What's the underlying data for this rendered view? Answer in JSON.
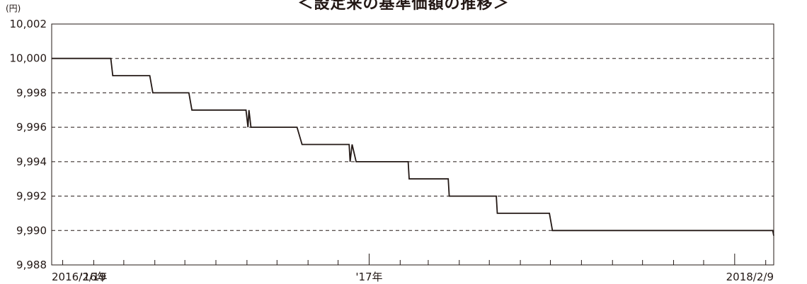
{
  "chart_data": {
    "type": "line",
    "title": "＜設定来の基準価額の推移＞",
    "unit_label": "(円)",
    "ylim": [
      9988,
      10002
    ],
    "yticks": [
      9988,
      9990,
      9992,
      9994,
      9996,
      9998,
      10000,
      10002
    ],
    "ytick_labels": [
      "9,988",
      "9,990",
      "9,992",
      "9,994",
      "9,996",
      "9,998",
      "10,000",
      "10,002"
    ],
    "grid": "horizontal-dashed",
    "xlim": [
      "2016-02-19",
      "2018-02-09"
    ],
    "x_tick_labels": [
      {
        "x": "2016-02-19",
        "label": "2016/2/19",
        "anchor": "start"
      },
      {
        "x": "2016-04-01",
        "label": "'16年",
        "anchor": "middle"
      },
      {
        "x": "2017-01-01",
        "label": "'17年",
        "anchor": "middle"
      },
      {
        "x": "2018-02-09",
        "label": "2018/2/9",
        "anchor": "end"
      }
    ],
    "series": [
      {
        "name": "",
        "x": [
          "2016-02-19",
          "2016-04-18",
          "2016-04-20",
          "2016-05-27",
          "2016-05-30",
          "2016-07-05",
          "2016-07-08",
          "2016-08-31",
          "2016-09-02",
          "2016-09-03",
          "2016-09-05",
          "2016-09-07",
          "2016-10-21",
          "2016-10-26",
          "2016-12-12",
          "2016-12-13",
          "2016-12-15",
          "2016-12-19",
          "2017-02-09",
          "2017-02-10",
          "2017-03-21",
          "2017-03-22",
          "2017-05-08",
          "2017-05-09",
          "2017-06-30",
          "2017-07-03",
          "2018-02-08",
          "2018-02-09"
        ],
        "values": [
          10000,
          10000,
          9999,
          9999,
          9998,
          9998,
          9997,
          9997,
          9996,
          9997,
          9996,
          9996,
          9996,
          9995,
          9995,
          9994,
          9995,
          9994,
          9994,
          9993,
          9993,
          9992,
          9992,
          9991,
          9991,
          9990,
          9990,
          9989.7
        ]
      }
    ]
  }
}
